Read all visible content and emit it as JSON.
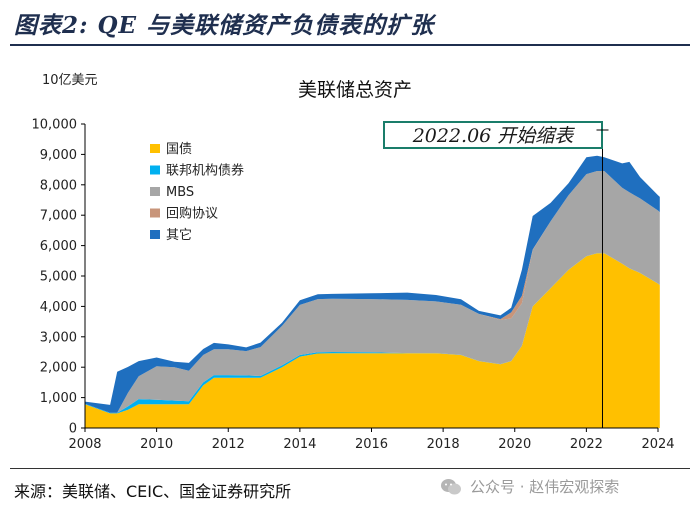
{
  "header": {
    "title": "图表2: QE 与美联储资产负债表的扩张"
  },
  "source": "来源：美联储、CEIC、国金证券研究所",
  "watermark": "公众号 · 赵伟宏观探索",
  "chart_data": {
    "type": "area",
    "stacked": true,
    "title": "美联储总资产",
    "unit_label": "10亿美元",
    "annotation": "2022.06  开始缩表",
    "annotation_x": 2022.45,
    "xlim": [
      2008,
      2024
    ],
    "ylim": [
      0,
      10000
    ],
    "x_ticks": [
      "2008",
      "2010",
      "2012",
      "2014",
      "2016",
      "2018",
      "2020",
      "2022",
      "2024"
    ],
    "y_ticks": [
      "0",
      "1,000",
      "2,000",
      "3,000",
      "4,000",
      "5,000",
      "6,000",
      "7,000",
      "8,000",
      "9,000",
      "10,000"
    ],
    "legend_position": "top-left",
    "x": [
      2008.0,
      2008.7,
      2008.9,
      2009.2,
      2009.5,
      2010.0,
      2010.5,
      2010.9,
      2011.3,
      2011.6,
      2012.0,
      2012.5,
      2012.9,
      2013.5,
      2014.0,
      2014.5,
      2014.9,
      2016.0,
      2017.0,
      2017.8,
      2018.5,
      2019.0,
      2019.6,
      2019.9,
      2020.2,
      2020.5,
      2021.0,
      2021.5,
      2022.0,
      2022.3,
      2022.5,
      2023.0,
      2023.2,
      2023.5,
      2024.0,
      2024.05
    ],
    "series": [
      {
        "name": "国债",
        "color": "#ffc000",
        "values": [
          780,
          480,
          480,
          600,
          780,
          780,
          780,
          780,
          1400,
          1650,
          1650,
          1650,
          1650,
          2000,
          2350,
          2450,
          2460,
          2460,
          2460,
          2460,
          2400,
          2200,
          2100,
          2200,
          2700,
          4000,
          4600,
          5200,
          5650,
          5750,
          5750,
          5400,
          5250,
          5100,
          4750,
          4700
        ]
      },
      {
        "name": "联邦机构债券",
        "color": "#00b0f0",
        "values": [
          20,
          20,
          20,
          110,
          170,
          150,
          120,
          100,
          100,
          90,
          90,
          80,
          60,
          60,
          50,
          40,
          40,
          30,
          5,
          5,
          5,
          3,
          3,
          3,
          3,
          3,
          3,
          3,
          3,
          3,
          3,
          3,
          3,
          3,
          3,
          3
        ]
      },
      {
        "name": "MBS",
        "color": "#a6a6a6",
        "values": [
          0,
          0,
          0,
          450,
          750,
          1100,
          1100,
          1000,
          900,
          850,
          850,
          800,
          950,
          1300,
          1650,
          1750,
          1750,
          1750,
          1750,
          1700,
          1650,
          1550,
          1450,
          1400,
          1400,
          1850,
          2200,
          2450,
          2700,
          2700,
          2700,
          2500,
          2500,
          2450,
          2400,
          2400
        ]
      },
      {
        "name": "回购协议",
        "color": "#c8957a",
        "values": [
          0,
          0,
          0,
          0,
          0,
          0,
          0,
          0,
          0,
          0,
          0,
          0,
          0,
          0,
          0,
          0,
          0,
          0,
          0,
          0,
          0,
          0,
          30,
          200,
          250,
          20,
          0,
          0,
          0,
          0,
          0,
          0,
          0,
          0,
          0,
          0
        ]
      },
      {
        "name": "其它",
        "color": "#1f6fbf",
        "values": [
          70,
          260,
          1350,
          850,
          500,
          290,
          180,
          260,
          200,
          210,
          160,
          120,
          150,
          100,
          150,
          160,
          160,
          190,
          240,
          210,
          180,
          100,
          120,
          150,
          850,
          1100,
          600,
          400,
          550,
          500,
          450,
          800,
          1000,
          700,
          500,
          500
        ]
      }
    ]
  }
}
